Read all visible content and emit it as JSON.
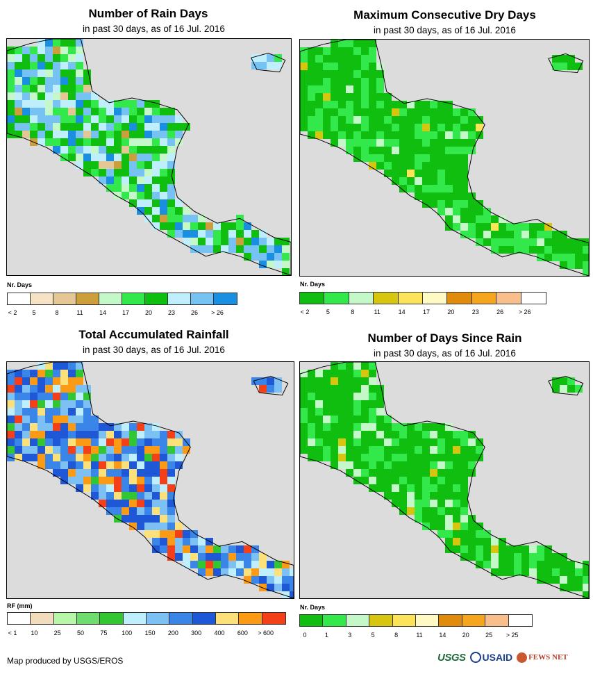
{
  "panels": [
    {
      "id": "rain-days",
      "title": "Number of Rain Days",
      "subtitle": "in past 30 days, as of 16 Jul. 2016",
      "legend_title": "Nr. Days",
      "legend_colors": [
        "#ffffff",
        "#f6e2c4",
        "#e5c796",
        "#cc9f3c",
        "#c4f8c8",
        "#32e84a",
        "#10be10",
        "#bfeffd",
        "#76c3f3",
        "#1a8ee0"
      ],
      "legend_labels": [
        "< 2",
        "5",
        "8",
        "11",
        "14",
        "17",
        "20",
        "23",
        "26",
        "> 26"
      ],
      "palette": [
        "#10be10",
        "#32e84a",
        "#c4f8c8",
        "#bfeffd",
        "#76c3f3",
        "#1a8ee0",
        "#cc9f3c",
        "#e5c796"
      ],
      "weights": [
        28,
        14,
        10,
        16,
        18,
        8,
        3,
        3
      ]
    },
    {
      "id": "max-dry-days",
      "title": "Maximum Consecutive Dry Days",
      "subtitle": "in past 30 days, as of 16 Jul. 2016",
      "legend_title": "Nr. Days",
      "legend_colors": [
        "#10be10",
        "#32e84a",
        "#c4f8c8",
        "#d6c610",
        "#fbe35a",
        "#fff9c4",
        "#e08c0a",
        "#f5a51e",
        "#f8bf8c",
        "#ffffff"
      ],
      "legend_labels": [
        "< 2",
        "5",
        "8",
        "11",
        "14",
        "17",
        "20",
        "23",
        "26",
        "> 26"
      ],
      "palette": [
        "#10be10",
        "#32e84a",
        "#c4f8c8",
        "#d6c610",
        "#fbe35a"
      ],
      "weights": [
        60,
        26,
        8,
        3,
        3
      ]
    },
    {
      "id": "total-rainfall",
      "title": "Total Accumulated Rainfall",
      "subtitle": "in past 30 days, as of 16 Jul. 2016",
      "legend_title": "RF (mm)",
      "legend_colors": [
        "#ffffff",
        "#f3dcbb",
        "#b9f7a8",
        "#6fdc6f",
        "#32c732",
        "#bfeffd",
        "#7cc0f4",
        "#3a86e8",
        "#1f58d6",
        "#fce07a",
        "#fb9a14",
        "#f44018"
      ],
      "legend_labels": [
        "< 1",
        "10",
        "25",
        "50",
        "75",
        "100",
        "150",
        "200",
        "300",
        "400",
        "600",
        "> 600"
      ],
      "palette": [
        "#1f58d6",
        "#3a86e8",
        "#7cc0f4",
        "#bfeffd",
        "#fce07a",
        "#fb9a14",
        "#f44018",
        "#32c732"
      ],
      "weights": [
        20,
        22,
        16,
        6,
        10,
        12,
        8,
        3
      ]
    },
    {
      "id": "days-since-rain",
      "title": "Number of Days Since Rain",
      "subtitle": "in past 30 days, as of 16 Jul. 2016",
      "legend_title": "Nr. Days",
      "legend_colors": [
        "#10be10",
        "#32e84a",
        "#c4f8c8",
        "#d6c610",
        "#fbe35a",
        "#fff9c4",
        "#e08c0a",
        "#f5a51e",
        "#f8bf8c",
        "#ffffff"
      ],
      "legend_labels": [
        "0",
        "1",
        "3",
        "5",
        "8",
        "11",
        "14",
        "20",
        "25",
        "> 25"
      ],
      "palette": [
        "#10be10",
        "#32e84a",
        "#c4f8c8",
        "#d6c610"
      ],
      "weights": [
        68,
        18,
        12,
        2
      ]
    }
  ],
  "credit": "Map produced by USGS/EROS",
  "logos": {
    "usgs": "USGS",
    "usaid": "USAID",
    "fews": "FEWS NET"
  }
}
